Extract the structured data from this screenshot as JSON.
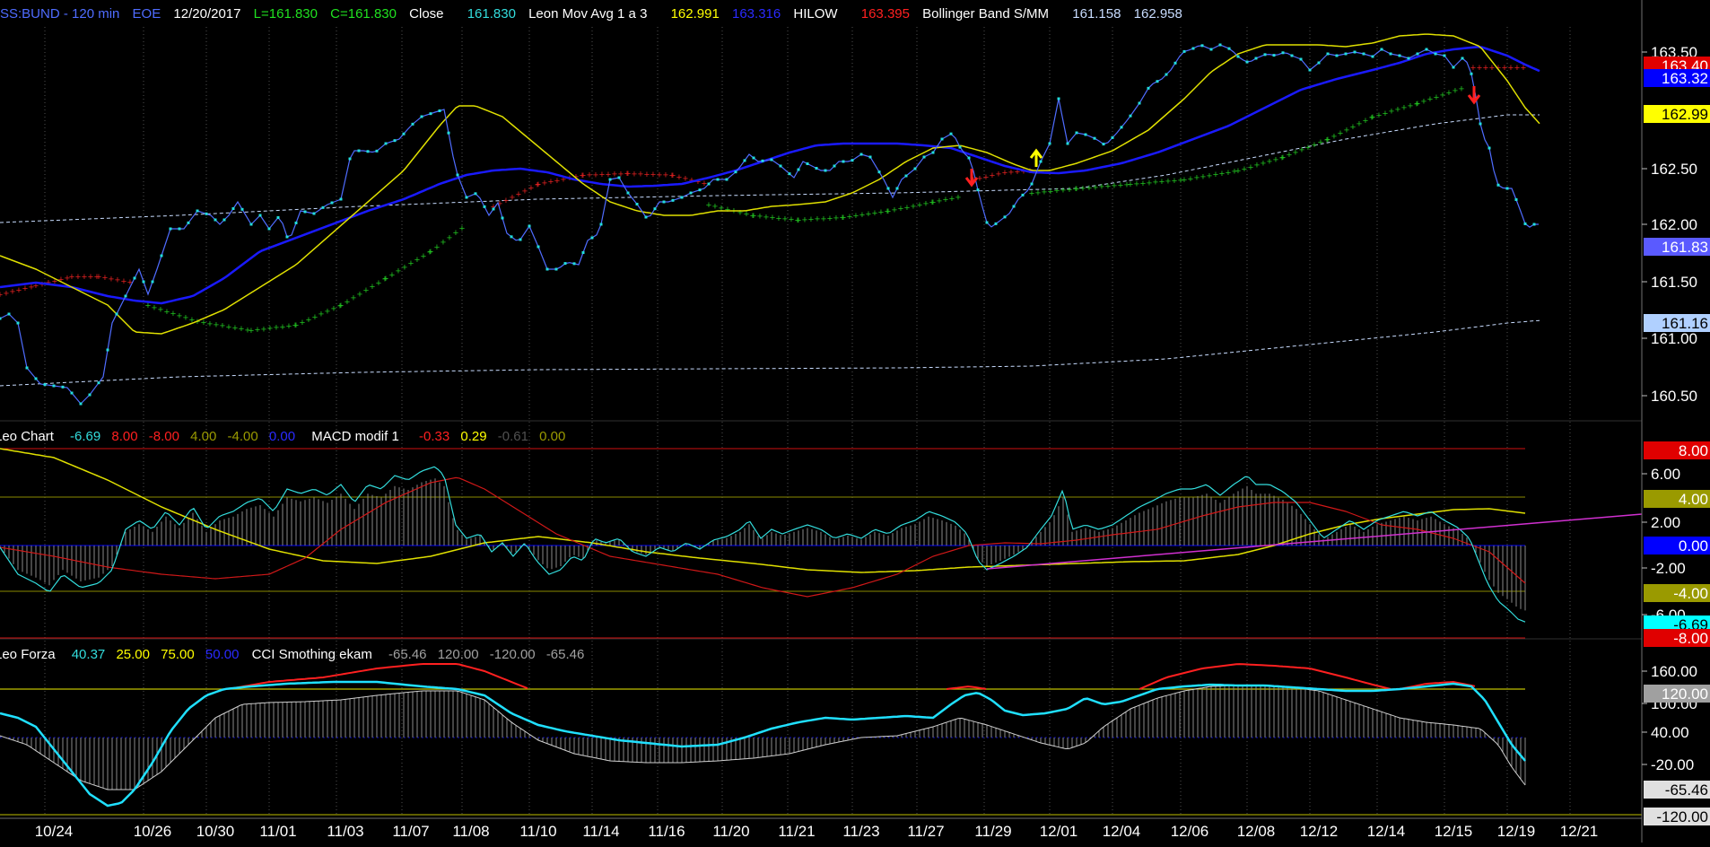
{
  "header": {
    "symbol": "SS:BUND - 120 min",
    "session": "EOE",
    "date": "12/20/2017",
    "low": "L=161.830",
    "close_val": "C=161.830",
    "close_label": "Close",
    "close_num": "161.830",
    "ma_label": "Leon Mov Avg 1 a 3",
    "ma_v1": "162.991",
    "ma_v2": "163.316",
    "hilow_label": "HILOW",
    "hilow_v": "163.395",
    "bb_label": "Bollinger Band S/MM",
    "bb_v1": "161.158",
    "bb_v2": "162.958"
  },
  "macd_header": {
    "name": "Leo Chart",
    "v1": "-6.69",
    "v2": "8.00",
    "v3": "-8.00",
    "v4": "4.00",
    "v5": "-4.00",
    "v6": "0.00",
    "macd_label": "MACD modif 1",
    "m1": "-0.33",
    "m2": "0.29",
    "m3": "-0.61",
    "m4": "0.00"
  },
  "forza_header": {
    "name": "Leo Forza",
    "v1": "40.37",
    "v2": "25.00",
    "v3": "75.00",
    "v4": "50.00",
    "cci_label": "CCI Smothing ekam",
    "c1": "-65.46",
    "c2": "120.00",
    "c3": "-120.00",
    "c4": "-65.46"
  },
  "price_axis": {
    "ticks": [
      "163.50",
      "162.50",
      "162.00",
      "161.50",
      "161.00",
      "160.50"
    ],
    "tags": [
      {
        "text": "163.40",
        "color": "#e00000",
        "fg": "#ffffff"
      },
      {
        "text": "163.32",
        "color": "#0000ff",
        "fg": "#ffffff"
      },
      {
        "text": "162.99",
        "color": "#ffff00",
        "fg": "#000000"
      },
      {
        "text": "161.83",
        "color": "#5a5aff",
        "fg": "#ffffff"
      },
      {
        "text": "161.16",
        "color": "#b0d0ff",
        "fg": "#000000"
      }
    ]
  },
  "macd_axis": {
    "ticks": [
      "6.00",
      "2.00",
      "-2.00",
      "-6.00"
    ],
    "tags": [
      {
        "text": "8.00",
        "color": "#e00000",
        "fg": "#ffffff"
      },
      {
        "text": "4.00",
        "color": "#9a9a00",
        "fg": "#ffffff"
      },
      {
        "text": "0.00",
        "color": "#0000ff",
        "fg": "#ffffff"
      },
      {
        "text": "-4.00",
        "color": "#9a9a00",
        "fg": "#ffffff"
      },
      {
        "text": "-6.69",
        "color": "#00ffff",
        "fg": "#000000"
      },
      {
        "text": "-8.00",
        "color": "#e00000",
        "fg": "#ffffff"
      }
    ]
  },
  "forza_axis": {
    "ticks": [
      "160.00",
      "100.00",
      "40.00",
      "-20.00"
    ],
    "tags": [
      {
        "text": "120.00",
        "color": "#a0a0a0",
        "fg": "#ffffff"
      },
      {
        "text": "-65.46",
        "color": "#e0e0e0",
        "fg": "#000000"
      },
      {
        "text": "-120.00",
        "color": "#e0e0e0",
        "fg": "#000000"
      }
    ]
  },
  "dates": [
    "10/24",
    "10/26",
    "10/30",
    "11/01",
    "11/03",
    "11/07",
    "11/08",
    "11/10",
    "11/14",
    "11/16",
    "11/20",
    "11/21",
    "11/23",
    "11/27",
    "11/29",
    "12/01",
    "12/04",
    "12/06",
    "12/08",
    "12/12",
    "12/14",
    "12/15",
    "12/19",
    "12/21"
  ],
  "colors": {
    "price": "#4f6cff",
    "points": "#22dddd",
    "ma_fast": "#e0e000",
    "ma_slow": "#1a1aff",
    "hilow_up": "#20c020",
    "hilow_down": "#e02020",
    "bb": "#c8dcff",
    "macd_cyan": "#33dddd",
    "macd_red": "#d01818",
    "macd_yellow": "#e0e000",
    "macd_magenta": "#d030d0",
    "hist": "#9a9a9a",
    "forza_cyan": "#20e0ff",
    "forza_red": "#ff2020",
    "forza_gray": "#d0d0d0"
  }
}
